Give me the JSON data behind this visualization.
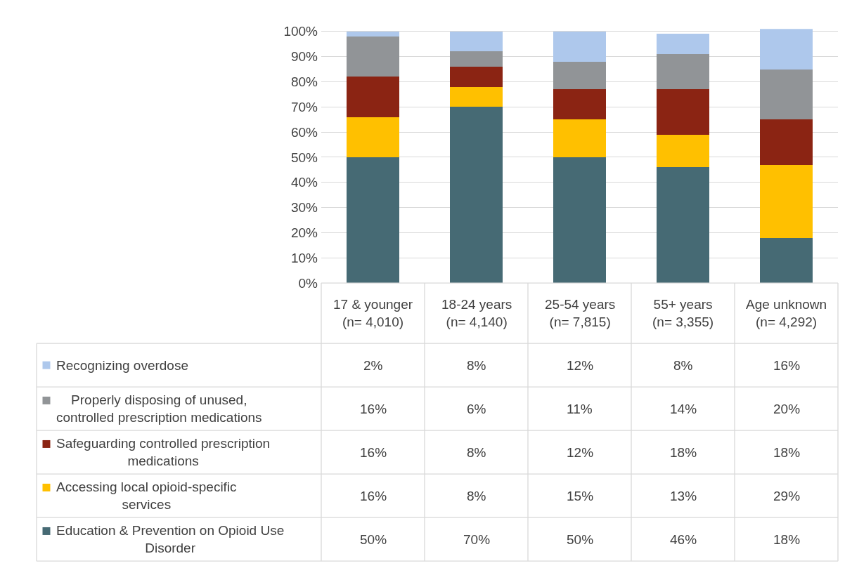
{
  "chart_data": {
    "type": "bar",
    "stacked": true,
    "categories": [
      "17 & younger (n= 4,010)",
      "18-24 years (n= 4,140)",
      "25-54 years (n= 7,815)",
      "55+ years (n= 3,355)",
      "Age unknown (n= 4,292)"
    ],
    "series": [
      {
        "name": "Education & Prevention on Opioid Use Disorder",
        "color": "#466a74",
        "values": [
          50,
          70,
          50,
          46,
          18
        ],
        "value_labels": [
          "50%",
          "70%",
          "50%",
          "46%",
          "18%"
        ]
      },
      {
        "name": "Accessing local opioid-specific services",
        "color": "#ffc000",
        "values": [
          16,
          8,
          15,
          13,
          29
        ],
        "value_labels": [
          "16%",
          "8%",
          "15%",
          "13%",
          "29%"
        ]
      },
      {
        "name": "Safeguarding controlled prescription medications",
        "color": "#8b2413",
        "values": [
          16,
          8,
          12,
          18,
          18
        ],
        "value_labels": [
          "16%",
          "8%",
          "12%",
          "18%",
          "18%"
        ]
      },
      {
        "name": "Properly disposing of unused, controlled prescription medications",
        "color": "#919497",
        "values": [
          16,
          6,
          11,
          14,
          20
        ],
        "value_labels": [
          "16%",
          "6%",
          "11%",
          "14%",
          "20%"
        ]
      },
      {
        "name": "Recognizing overdose",
        "color": "#aec8ec",
        "values": [
          2,
          8,
          12,
          8,
          16
        ],
        "value_labels": [
          "2%",
          "8%",
          "12%",
          "8%",
          "16%"
        ]
      }
    ],
    "ylim": [
      0,
      101
    ],
    "yticks": [
      {
        "value": 0,
        "label": "0%"
      },
      {
        "value": 10,
        "label": "10%"
      },
      {
        "value": 20,
        "label": "20%"
      },
      {
        "value": 30,
        "label": "30%"
      },
      {
        "value": 40,
        "label": "40%"
      },
      {
        "value": 50,
        "label": "50%"
      },
      {
        "value": 60,
        "label": "60%"
      },
      {
        "value": 70,
        "label": "70%"
      },
      {
        "value": 80,
        "label": "80%"
      },
      {
        "value": 90,
        "label": "90%"
      },
      {
        "value": 100,
        "label": "100%"
      }
    ],
    "grid": "y",
    "tick_labels": "y",
    "legend": "bottom left"
  }
}
